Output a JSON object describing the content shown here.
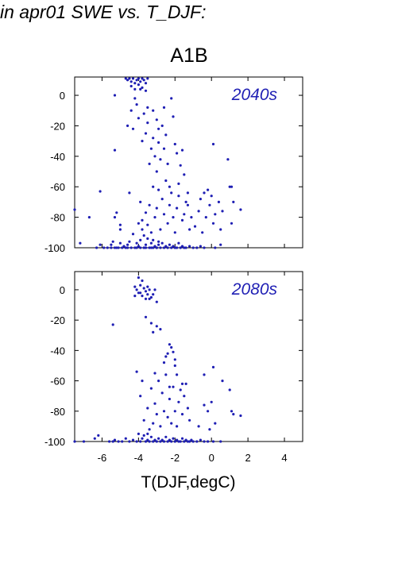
{
  "figure_title": "in apr01 SWE vs. T_DJF:",
  "scenario": "A1B",
  "colors": {
    "points": "#1f1fb4",
    "axis": "#000000"
  },
  "chart_data": [
    {
      "type": "scatter",
      "panel_label": "2040s",
      "xlim": [
        -7.5,
        5
      ],
      "ylim": [
        -100,
        12
      ],
      "xticks": [
        -6,
        -4,
        -2,
        0,
        2,
        4
      ],
      "yticks": [
        0,
        -20,
        -40,
        -60,
        -80,
        -100
      ],
      "xlabel": "",
      "ylabel": "",
      "points": [
        [
          -7.5,
          -75
        ],
        [
          -7.2,
          -97
        ],
        [
          -6.7,
          -80
        ],
        [
          -6.3,
          -100
        ],
        [
          -6.1,
          -98
        ],
        [
          -6.1,
          -63
        ],
        [
          -5.9,
          -100
        ],
        [
          -5.7,
          -100
        ],
        [
          -5.5,
          -98
        ],
        [
          -5.4,
          -96
        ],
        [
          -5.5,
          -100
        ],
        [
          -5.3,
          -100
        ],
        [
          -5.3,
          -80
        ],
        [
          -5.3,
          -36
        ],
        [
          -5.2,
          -100
        ],
        [
          -5.1,
          -100
        ],
        [
          -5.0,
          -97
        ],
        [
          -5.2,
          -77
        ],
        [
          -5.0,
          -88
        ],
        [
          -4.9,
          -100
        ],
        [
          -4.8,
          -99
        ],
        [
          -4.7,
          -100
        ],
        [
          -4.6,
          -98
        ],
        [
          -4.6,
          -100
        ],
        [
          -4.5,
          -96
        ],
        [
          -4.4,
          -100
        ],
        [
          -4.3,
          -91
        ],
        [
          -4.2,
          -100
        ],
        [
          -4.1,
          -97
        ],
        [
          -4.0,
          -99
        ],
        [
          -3.9,
          -100
        ],
        [
          -3.9,
          -95
        ],
        [
          -3.8,
          -88
        ],
        [
          -3.7,
          -100
        ],
        [
          -3.6,
          -98
        ],
        [
          -3.5,
          -94
        ],
        [
          -3.4,
          -100
        ],
        [
          -3.3,
          -97
        ],
        [
          -3.2,
          -100
        ],
        [
          -3.1,
          -99
        ],
        [
          -3.0,
          -100
        ],
        [
          -2.9,
          -98
        ],
        [
          -2.8,
          -100
        ],
        [
          -2.7,
          -97
        ],
        [
          -2.6,
          -100
        ],
        [
          -2.5,
          -99
        ],
        [
          -2.4,
          -100
        ],
        [
          -2.3,
          -98
        ],
        [
          -2.2,
          -100
        ],
        [
          -2.1,
          -99
        ],
        [
          -2.0,
          -100
        ],
        [
          -1.9,
          -100
        ],
        [
          -1.8,
          -97
        ],
        [
          -1.7,
          -100
        ],
        [
          -1.6,
          -99
        ],
        [
          -1.5,
          -100
        ],
        [
          -1.4,
          -100
        ],
        [
          -1.2,
          -99
        ],
        [
          -1.0,
          -100
        ],
        [
          -0.8,
          -100
        ],
        [
          -0.6,
          -99
        ],
        [
          -0.4,
          -100
        ],
        [
          0.2,
          -100
        ],
        [
          0.5,
          -98
        ],
        [
          -3.0,
          -100
        ],
        [
          -3.3,
          -100
        ],
        [
          -3.6,
          -100
        ],
        [
          -4.1,
          -100
        ],
        [
          -2.9,
          -96
        ],
        [
          -3.2,
          -95
        ],
        [
          -5.3,
          0
        ],
        [
          -4.6,
          -20
        ],
        [
          -4.4,
          -10
        ],
        [
          -4.3,
          -22
        ],
        [
          -4.2,
          -2
        ],
        [
          -4.1,
          -6
        ],
        [
          -4.0,
          -15
        ],
        [
          -3.9,
          4
        ],
        [
          -3.8,
          -30
        ],
        [
          -3.7,
          -12
        ],
        [
          -3.6,
          -25
        ],
        [
          -3.5,
          -18
        ],
        [
          -3.5,
          -8
        ],
        [
          -3.4,
          -45
        ],
        [
          -3.3,
          -35
        ],
        [
          -3.2,
          -28
        ],
        [
          -3.2,
          -10
        ],
        [
          -3.1,
          -40
        ],
        [
          -3.0,
          -16
        ],
        [
          -3.0,
          -50
        ],
        [
          -2.9,
          -22
        ],
        [
          -2.9,
          -31
        ],
        [
          -2.8,
          -42
        ],
        [
          -2.7,
          -20
        ],
        [
          -2.6,
          -35
        ],
        [
          -2.6,
          -8
        ],
        [
          -2.5,
          -26
        ],
        [
          -2.4,
          -45
        ],
        [
          -2.3,
          -60
        ],
        [
          -2.2,
          -2
        ],
        [
          -2.1,
          -14
        ],
        [
          -2.0,
          -32
        ],
        [
          -1.9,
          -38
        ],
        [
          -1.8,
          -58
        ],
        [
          -1.7,
          -46
        ],
        [
          -1.6,
          -36
        ],
        [
          -1.5,
          -52
        ],
        [
          -1.4,
          -70
        ],
        [
          -1.3,
          -64
        ],
        [
          -1.2,
          -88
        ],
        [
          -3.9,
          -70
        ],
        [
          -3.8,
          -82
        ],
        [
          -3.7,
          -92
        ],
        [
          -3.6,
          -77
        ],
        [
          -3.5,
          -85
        ],
        [
          -3.4,
          -72
        ],
        [
          -3.3,
          -90
        ],
        [
          -3.2,
          -60
        ],
        [
          -3.1,
          -80
        ],
        [
          -3.0,
          -74
        ],
        [
          -2.9,
          -62
        ],
        [
          -2.8,
          -88
        ],
        [
          -2.7,
          -68
        ],
        [
          -2.6,
          -78
        ],
        [
          -2.5,
          -56
        ],
        [
          -2.4,
          -84
        ],
        [
          -2.3,
          -72
        ],
        [
          -2.2,
          -64
        ],
        [
          -2.1,
          -80
        ],
        [
          -2.0,
          -90
        ],
        [
          -1.9,
          -74
        ],
        [
          -1.8,
          -66
        ],
        [
          -1.6,
          -82
        ],
        [
          -1.5,
          -78
        ],
        [
          -1.3,
          -72
        ],
        [
          -1.1,
          -80
        ],
        [
          -0.9,
          -86
        ],
        [
          -0.7,
          -76
        ],
        [
          -0.6,
          -68
        ],
        [
          -0.5,
          -90
        ],
        [
          -0.4,
          -64
        ],
        [
          -0.3,
          -80
        ],
        [
          -0.2,
          -62
        ],
        [
          -0.1,
          -72
        ],
        [
          0.0,
          -66
        ],
        [
          0.1,
          -84
        ],
        [
          0.2,
          -78
        ],
        [
          0.4,
          -70
        ],
        [
          0.5,
          -88
        ],
        [
          0.6,
          -76
        ],
        [
          0.9,
          -42
        ],
        [
          1.0,
          -60
        ],
        [
          1.1,
          -60
        ],
        [
          1.2,
          -70
        ],
        [
          1.6,
          -75
        ],
        [
          1.1,
          -84
        ],
        [
          0.1,
          -32
        ],
        [
          -4.5,
          -64
        ],
        [
          -4.0,
          -84
        ],
        [
          -5.0,
          -85
        ],
        [
          -4.7,
          11
        ],
        [
          -4.6,
          10
        ],
        [
          -4.5,
          11
        ],
        [
          -4.4,
          9
        ],
        [
          -4.3,
          11
        ],
        [
          -4.2,
          8
        ],
        [
          -4.1,
          10
        ],
        [
          -4.0,
          11
        ],
        [
          -3.9,
          9
        ],
        [
          -3.8,
          11
        ],
        [
          -3.7,
          10
        ],
        [
          -3.6,
          8
        ],
        [
          -3.5,
          11
        ],
        [
          -4.4,
          6
        ],
        [
          -4.2,
          4
        ],
        [
          -4.0,
          7
        ],
        [
          -3.8,
          5
        ],
        [
          -3.6,
          3
        ]
      ]
    },
    {
      "type": "scatter",
      "panel_label": "2080s",
      "xlim": [
        -7.5,
        5
      ],
      "ylim": [
        -100,
        12
      ],
      "xticks": [
        -6,
        -4,
        -2,
        0,
        2,
        4
      ],
      "yticks": [
        0,
        -20,
        -40,
        -60,
        -80,
        -100
      ],
      "xlabel": "T(DJF,degC)",
      "ylabel": "",
      "points": [
        [
          -7.5,
          -100
        ],
        [
          -7.0,
          -100
        ],
        [
          -6.4,
          -98
        ],
        [
          -6.2,
          -96
        ],
        [
          -5.6,
          -100
        ],
        [
          -5.4,
          -100
        ],
        [
          -5.3,
          -99
        ],
        [
          -5.1,
          -100
        ],
        [
          -4.9,
          -100
        ],
        [
          -4.7,
          -98
        ],
        [
          -4.5,
          -100
        ],
        [
          -4.3,
          -99
        ],
        [
          -4.1,
          -100
        ],
        [
          -3.9,
          -100
        ],
        [
          -3.8,
          -98
        ],
        [
          -3.6,
          -100
        ],
        [
          -3.5,
          -99
        ],
        [
          -3.4,
          -100
        ],
        [
          -3.3,
          -97
        ],
        [
          -3.2,
          -100
        ],
        [
          -3.1,
          -99
        ],
        [
          -3.0,
          -100
        ],
        [
          -2.9,
          -98
        ],
        [
          -2.8,
          -100
        ],
        [
          -2.7,
          -99
        ],
        [
          -2.6,
          -100
        ],
        [
          -2.5,
          -97
        ],
        [
          -2.4,
          -100
        ],
        [
          -2.3,
          -99
        ],
        [
          -2.2,
          -100
        ],
        [
          -2.1,
          -98
        ],
        [
          -2.0,
          -100
        ],
        [
          -1.9,
          -99
        ],
        [
          -1.8,
          -100
        ],
        [
          -1.7,
          -100
        ],
        [
          -1.6,
          -98
        ],
        [
          -1.5,
          -100
        ],
        [
          -1.4,
          -99
        ],
        [
          -1.3,
          -100
        ],
        [
          -1.2,
          -100
        ],
        [
          -1.1,
          -99
        ],
        [
          -1.0,
          -100
        ],
        [
          -0.8,
          -100
        ],
        [
          -0.6,
          -99
        ],
        [
          -0.4,
          -100
        ],
        [
          -0.2,
          -100
        ],
        [
          0.1,
          -100
        ],
        [
          0.5,
          -100
        ],
        [
          -3.7,
          -96
        ],
        [
          -3.5,
          -95
        ],
        [
          -5.4,
          -23
        ],
        [
          -4.1,
          -54
        ],
        [
          -3.9,
          -70
        ],
        [
          -3.7,
          -86
        ],
        [
          -3.5,
          -78
        ],
        [
          -3.4,
          -92
        ],
        [
          -3.3,
          -65
        ],
        [
          -3.2,
          -88
        ],
        [
          -3.1,
          -75
        ],
        [
          -3.0,
          -82
        ],
        [
          -2.9,
          -60
        ],
        [
          -2.8,
          -90
        ],
        [
          -2.7,
          -68
        ],
        [
          -2.6,
          -80
        ],
        [
          -2.5,
          -56
        ],
        [
          -2.4,
          -84
        ],
        [
          -2.3,
          -72
        ],
        [
          -2.2,
          -88
        ],
        [
          -2.1,
          -64
        ],
        [
          -2.0,
          -80
        ],
        [
          -1.9,
          -90
        ],
        [
          -1.8,
          -74
        ],
        [
          -1.7,
          -66
        ],
        [
          -1.6,
          -82
        ],
        [
          -1.5,
          -70
        ],
        [
          -1.4,
          -62
        ],
        [
          -1.3,
          -78
        ],
        [
          -1.2,
          -86
        ],
        [
          -0.4,
          -76
        ],
        [
          -0.2,
          -80
        ],
        [
          -0.1,
          -92
        ],
        [
          0.0,
          -74
        ],
        [
          0.1,
          -51
        ],
        [
          0.2,
          -88
        ],
        [
          0.6,
          -60
        ],
        [
          1.0,
          -66
        ],
        [
          1.1,
          -80
        ],
        [
          1.2,
          -82
        ],
        [
          1.6,
          -83
        ],
        [
          -0.4,
          -56
        ],
        [
          -3.6,
          -18
        ],
        [
          -3.3,
          -22
        ],
        [
          -3.2,
          -28
        ],
        [
          -3.0,
          -24
        ],
        [
          -2.8,
          -26
        ],
        [
          -2.6,
          -48
        ],
        [
          -2.5,
          -44
        ],
        [
          -2.4,
          -42
        ],
        [
          -2.3,
          -36
        ],
        [
          -2.2,
          -38
        ],
        [
          -2.1,
          -41
        ],
        [
          -2.0,
          -46
        ],
        [
          -3.1,
          -55
        ],
        [
          -3.8,
          -60
        ],
        [
          -4.0,
          -95
        ],
        [
          -2.0,
          -50
        ],
        [
          -2.3,
          -64
        ],
        [
          -1.9,
          -56
        ],
        [
          -1.6,
          -62
        ],
        [
          -0.7,
          -90
        ],
        [
          -4.2,
          2
        ],
        [
          -4.1,
          0
        ],
        [
          -4.0,
          -2
        ],
        [
          -3.9,
          3
        ],
        [
          -3.8,
          -4
        ],
        [
          -3.7,
          1
        ],
        [
          -3.6,
          -1
        ],
        [
          -3.5,
          -3
        ],
        [
          -3.4,
          0
        ],
        [
          -3.3,
          -5
        ],
        [
          -3.8,
          6
        ],
        [
          -3.6,
          -6
        ],
        [
          -4.0,
          8
        ],
        [
          -3.5,
          2
        ],
        [
          -3.2,
          -3
        ],
        [
          -4.2,
          -4
        ],
        [
          -3.1,
          0
        ],
        [
          -3.0,
          -8
        ],
        [
          -3.4,
          -6
        ],
        [
          -3.9,
          -2
        ]
      ]
    }
  ]
}
